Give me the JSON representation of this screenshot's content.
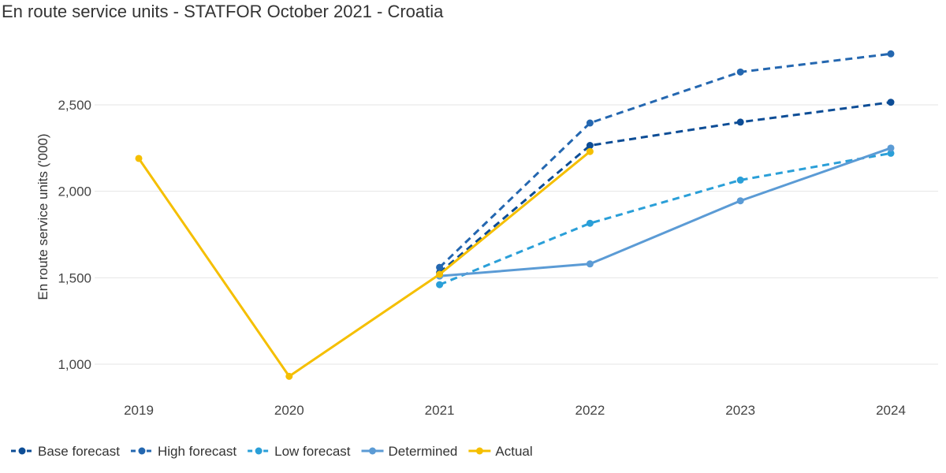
{
  "chart_data": {
    "type": "line",
    "title": "En route service units - STATFOR October 2021 - Croatia",
    "xlabel": "",
    "ylabel": "En route service units ('000)",
    "x": [
      "2019",
      "2020",
      "2021",
      "2022",
      "2023",
      "2024"
    ],
    "yticks": [
      "1,000",
      "1,500",
      "2,000",
      "2,500"
    ],
    "ylim": [
      930,
      2800
    ],
    "grid": true,
    "legend_position": "bottom-left",
    "series": [
      {
        "name": "Base forecast",
        "color": "#0d4d96",
        "style": "dashed",
        "values": [
          null,
          null,
          1530,
          2265,
          2400,
          2515
        ]
      },
      {
        "name": "High forecast",
        "color": "#2467b0",
        "style": "dashed",
        "values": [
          null,
          null,
          1560,
          2395,
          2690,
          2795
        ]
      },
      {
        "name": "Low forecast",
        "color": "#2a9fd8",
        "style": "dashed",
        "values": [
          null,
          null,
          1460,
          1815,
          2065,
          2220
        ]
      },
      {
        "name": "Determined",
        "color": "#5b9bd5",
        "style": "solid",
        "values": [
          null,
          null,
          1510,
          1580,
          1945,
          2250
        ]
      },
      {
        "name": "Actual",
        "color": "#f5bf00",
        "style": "solid",
        "values": [
          2190,
          930,
          1520,
          2230,
          null,
          null
        ]
      }
    ]
  }
}
